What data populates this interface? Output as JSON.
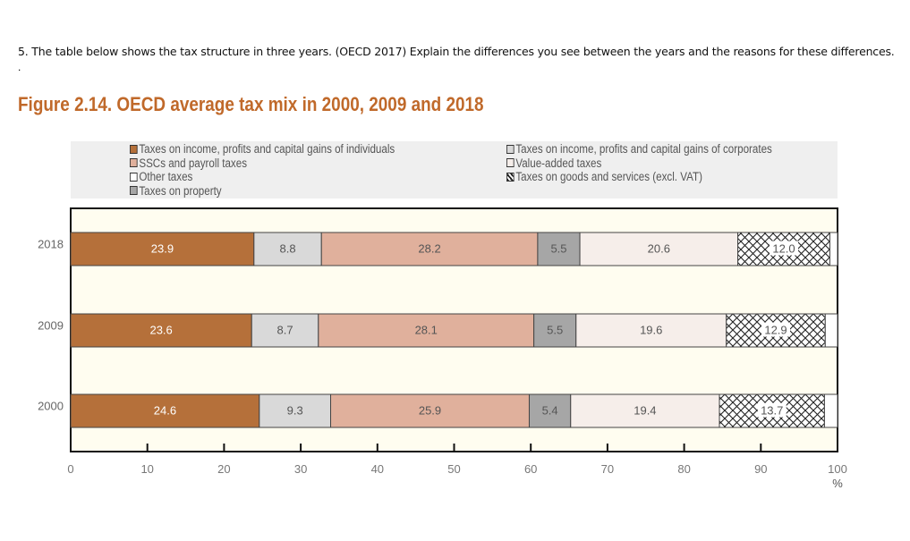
{
  "question": "5. The table below shows the tax structure in three years. (OECD 2017) Explain the differences you see between the years and the reasons for these differences.",
  "question_dot": ".",
  "chart_data": {
    "type": "bar",
    "orientation": "horizontal-stacked",
    "title": "Figure 2.14. OECD average tax mix in 2000, 2009 and 2018",
    "categories": [
      "2018",
      "2009",
      "2000"
    ],
    "xlim": [
      0,
      100
    ],
    "xticks": [
      "0",
      "10",
      "20",
      "30",
      "40",
      "50",
      "60",
      "70",
      "80",
      "90",
      "100"
    ],
    "xunit": "%",
    "legend_position": "top",
    "series": [
      {
        "name": "Taxes on income, profits and capital gains of individuals",
        "color": "#b5703a",
        "values": [
          23.9,
          23.6,
          24.6
        ],
        "label_color": "#ffffff"
      },
      {
        "name": "Taxes on income, profits and capital gains of corporates",
        "color": "#d9d9d9",
        "values": [
          8.8,
          8.7,
          9.3
        ]
      },
      {
        "name": "SSCs and payroll taxes",
        "color": "#e0b09c",
        "values": [
          28.2,
          28.1,
          25.9
        ]
      },
      {
        "name": "Taxes on property",
        "color": "#a6a6a6",
        "values": [
          5.5,
          5.5,
          5.4
        ]
      },
      {
        "name": "Value-added taxes",
        "color": "#f6eeea",
        "values": [
          20.6,
          19.6,
          19.4
        ]
      },
      {
        "name": "Taxes on goods and services (excl. VAT)",
        "color": "crosshatch",
        "values": [
          12.0,
          12.9,
          13.7
        ]
      },
      {
        "name": "Other taxes",
        "color": "#ffffff",
        "values": [
          1.0,
          1.6,
          1.7
        ],
        "unlabeled": true
      }
    ]
  }
}
